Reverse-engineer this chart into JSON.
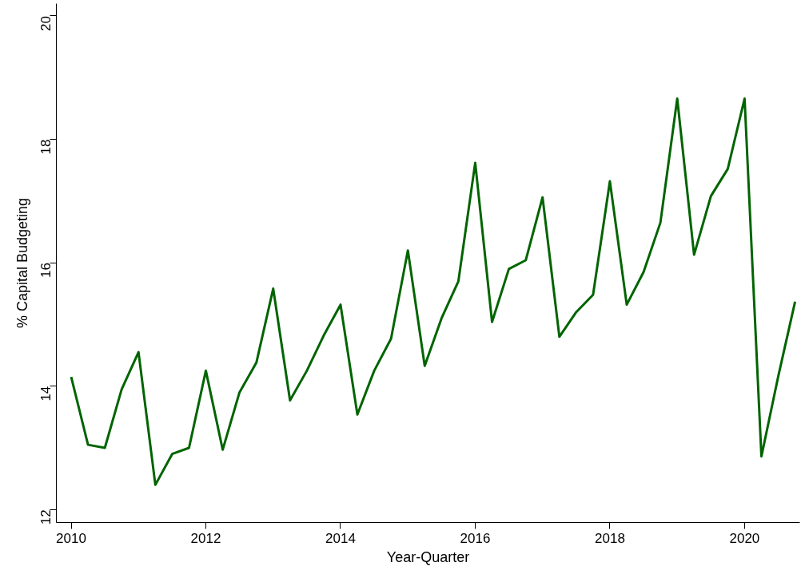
{
  "chart_data": {
    "type": "line",
    "xlabel": "Year-Quarter",
    "ylabel": "% Capital Budgeting",
    "x": [
      2010,
      2010.25,
      2010.5,
      2010.75,
      2011,
      2011.25,
      2011.5,
      2011.75,
      2012,
      2012.25,
      2012.5,
      2012.75,
      2013,
      2013.25,
      2013.5,
      2013.75,
      2014,
      2014.25,
      2014.5,
      2014.75,
      2015,
      2015.25,
      2015.5,
      2015.75,
      2016,
      2016.25,
      2016.5,
      2016.75,
      2017,
      2017.25,
      2017.5,
      2017.75,
      2018,
      2018.25,
      2018.5,
      2018.75,
      2019,
      2019.25,
      2019.5,
      2019.75,
      2020,
      2020.25,
      2020.5,
      2020.75
    ],
    "series": [
      {
        "color": "#006400",
        "values": [
          14.15,
          13.05,
          13.0,
          13.95,
          14.55,
          12.4,
          12.9,
          13.0,
          14.25,
          12.97,
          13.9,
          14.38,
          15.58,
          13.77,
          14.25,
          14.82,
          15.32,
          13.54,
          14.25,
          14.77,
          16.2,
          14.33,
          15.1,
          15.7,
          17.62,
          15.04,
          15.9,
          16.04,
          17.06,
          14.8,
          15.2,
          15.48,
          17.32,
          15.32,
          15.85,
          16.65,
          18.66,
          16.13,
          17.08,
          17.52,
          18.66,
          12.86,
          14.16,
          15.37
        ]
      }
    ],
    "xlim": [
      2009.78,
      2020.82
    ],
    "ylim": [
      11.79,
      20.2
    ],
    "xticks": [
      2010,
      2012,
      2014,
      2016,
      2018,
      2020
    ],
    "yticks": [
      12,
      14,
      16,
      18,
      20
    ],
    "grid": false,
    "marker": "none",
    "line_style": "solid"
  }
}
